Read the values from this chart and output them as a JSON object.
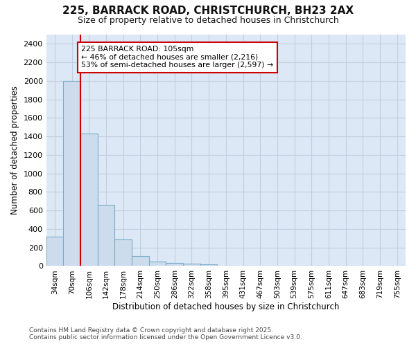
{
  "title_line1": "225, BARRACK ROAD, CHRISTCHURCH, BH23 2AX",
  "title_line2": "Size of property relative to detached houses in Christchurch",
  "xlabel": "Distribution of detached houses by size in Christchurch",
  "ylabel": "Number of detached properties",
  "categories": [
    "34sqm",
    "70sqm",
    "106sqm",
    "142sqm",
    "178sqm",
    "214sqm",
    "250sqm",
    "286sqm",
    "322sqm",
    "358sqm",
    "395sqm",
    "431sqm",
    "467sqm",
    "503sqm",
    "539sqm",
    "575sqm",
    "611sqm",
    "647sqm",
    "683sqm",
    "719sqm",
    "755sqm"
  ],
  "values": [
    320,
    2000,
    1430,
    660,
    290,
    105,
    48,
    35,
    25,
    15,
    0,
    0,
    0,
    0,
    0,
    0,
    0,
    0,
    0,
    0,
    0
  ],
  "bar_color": "#ccdcec",
  "bar_edge_color": "#7aaac8",
  "vline_color": "#cc0000",
  "annotation_text": "225 BARRACK ROAD: 105sqm\n← 46% of detached houses are smaller (2,216)\n53% of semi-detached houses are larger (2,597) →",
  "annotation_box_color": "#ffffff",
  "annotation_box_edge": "#cc0000",
  "ylim": [
    0,
    2500
  ],
  "yticks": [
    0,
    200,
    400,
    600,
    800,
    1000,
    1200,
    1400,
    1600,
    1800,
    2000,
    2200,
    2400
  ],
  "grid_color": "#c0cfe0",
  "plot_bg_color": "#dce8f5",
  "fig_bg_color": "#ffffff",
  "footer_line1": "Contains HM Land Registry data © Crown copyright and database right 2025.",
  "footer_line2": "Contains public sector information licensed under the Open Government Licence v3.0."
}
